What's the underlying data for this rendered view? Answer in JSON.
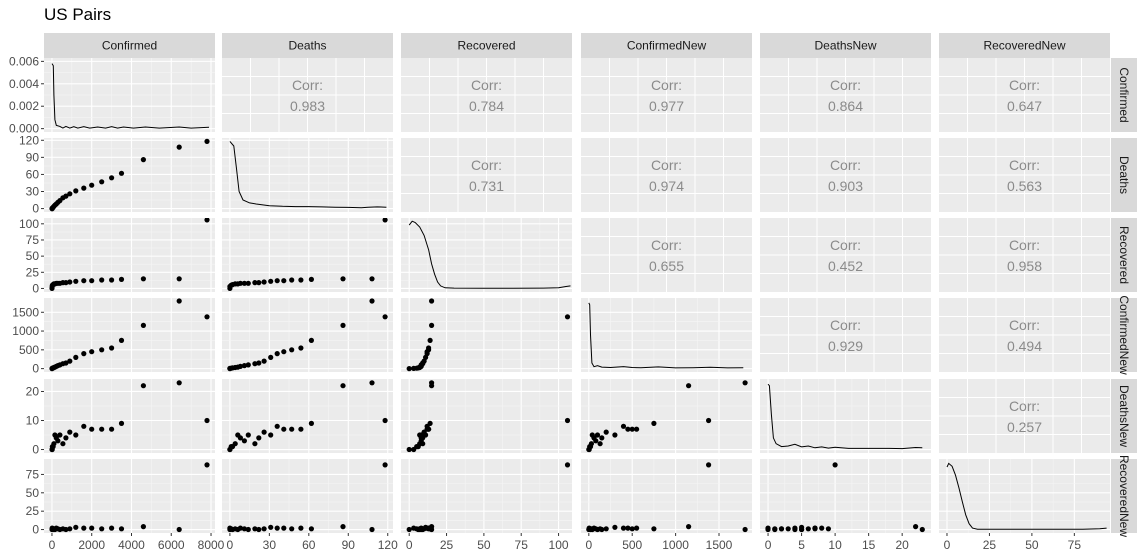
{
  "title": "US Pairs",
  "chart_data": {
    "type": "scatter",
    "subtype": "pairs-matrix",
    "title": "US Pairs",
    "variables": [
      "Confirmed",
      "Deaths",
      "Recovered",
      "ConfirmedNew",
      "DeathsNew",
      "RecoveredNew"
    ],
    "axes": {
      "x": [
        {
          "ticks": [
            0,
            2000,
            4000,
            6000,
            8000
          ],
          "tick_labels": [
            "0",
            "2000",
            "4000",
            "6000",
            "8000"
          ],
          "range": [
            -400,
            8200
          ]
        },
        {
          "ticks": [
            0,
            30,
            60,
            90,
            120
          ],
          "tick_labels": [
            "0",
            "30",
            "60",
            "90",
            "120"
          ],
          "range": [
            -6,
            124
          ]
        },
        {
          "ticks": [
            0,
            25,
            50,
            75,
            100
          ],
          "tick_labels": [
            "0",
            "25",
            "50",
            "75",
            "100"
          ],
          "range": [
            -5.5,
            109
          ]
        },
        {
          "ticks": [
            0,
            500,
            1000,
            1500
          ],
          "tick_labels": [
            "0",
            "500",
            "1000",
            "1500"
          ],
          "range": [
            -90,
            1880
          ]
        },
        {
          "ticks": [
            0,
            5,
            10,
            15,
            20
          ],
          "tick_labels": [
            "0",
            "5",
            "10",
            "15",
            "20"
          ],
          "range": [
            -1.2,
            24.3
          ]
        },
        {
          "ticks": [
            0,
            25,
            50,
            75
          ],
          "tick_labels": [
            "0",
            "25",
            "50",
            "75"
          ],
          "range": [
            -4.7,
            96
          ]
        }
      ],
      "y": [
        {
          "ticks": [
            0,
            0.002,
            0.004,
            0.006
          ],
          "tick_labels": [
            "0.000",
            "0.002",
            "0.004",
            "0.006"
          ],
          "range": [
            -0.0003,
            0.0063
          ]
        },
        {
          "ticks": [
            0,
            30,
            60,
            90,
            120
          ],
          "tick_labels": [
            "0",
            "30",
            "60",
            "90",
            "120"
          ],
          "range": [
            -6,
            124
          ]
        },
        {
          "ticks": [
            0,
            25,
            50,
            75,
            100
          ],
          "tick_labels": [
            "0",
            "25",
            "50",
            "75",
            "100"
          ],
          "range": [
            -5.5,
            109
          ]
        },
        {
          "ticks": [
            0,
            500,
            1000,
            1500
          ],
          "tick_labels": [
            "0",
            "500",
            "1000",
            "1500"
          ],
          "range": [
            -90,
            1880
          ]
        },
        {
          "ticks": [
            0,
            10,
            20
          ],
          "tick_labels": [
            "0",
            "10",
            "20"
          ],
          "range": [
            -1.2,
            24.3
          ]
        },
        {
          "ticks": [
            0,
            25,
            50,
            75
          ],
          "tick_labels": [
            "0",
            "25",
            "50",
            "75"
          ],
          "range": [
            -4.7,
            96
          ]
        }
      ]
    },
    "correlation_label": "Corr:",
    "correlations": [
      {
        "row": 0,
        "col": 1,
        "value": "0.983"
      },
      {
        "row": 0,
        "col": 2,
        "value": "0.784"
      },
      {
        "row": 0,
        "col": 3,
        "value": "0.977"
      },
      {
        "row": 0,
        "col": 4,
        "value": "0.864"
      },
      {
        "row": 0,
        "col": 5,
        "value": "0.647"
      },
      {
        "row": 1,
        "col": 2,
        "value": "0.731"
      },
      {
        "row": 1,
        "col": 3,
        "value": "0.974"
      },
      {
        "row": 1,
        "col": 4,
        "value": "0.903"
      },
      {
        "row": 1,
        "col": 5,
        "value": "0.563"
      },
      {
        "row": 2,
        "col": 3,
        "value": "0.655"
      },
      {
        "row": 2,
        "col": 4,
        "value": "0.452"
      },
      {
        "row": 2,
        "col": 5,
        "value": "0.958"
      },
      {
        "row": 3,
        "col": 4,
        "value": "0.929"
      },
      {
        "row": 3,
        "col": 5,
        "value": "0.494"
      },
      {
        "row": 4,
        "col": 5,
        "value": "0.257"
      }
    ],
    "densities": [
      {
        "var": "Confirmed",
        "points": [
          [
            0,
            0.0058
          ],
          [
            70,
            0.0056
          ],
          [
            100,
            0.003
          ],
          [
            150,
            0.0008
          ],
          [
            220,
            0.0003
          ],
          [
            400,
            0.0002
          ],
          [
            550,
            5e-05
          ],
          [
            700,
            0.0002
          ],
          [
            900,
            5e-05
          ],
          [
            1100,
            0.00018
          ],
          [
            1300,
            5e-05
          ],
          [
            1600,
            0.00018
          ],
          [
            1900,
            5e-05
          ],
          [
            2300,
            0.00015
          ],
          [
            2700,
            5e-05
          ],
          [
            3000,
            0.00018
          ],
          [
            3300,
            5e-05
          ],
          [
            3600,
            0.00015
          ],
          [
            4100,
            5e-05
          ],
          [
            4700,
            0.00015
          ],
          [
            5400,
            5e-05
          ],
          [
            6400,
            0.00015
          ],
          [
            7000,
            5e-05
          ],
          [
            7900,
            0.00012
          ]
        ]
      },
      {
        "var": "Deaths",
        "points": [
          [
            0,
            118
          ],
          [
            3,
            110
          ],
          [
            5,
            70
          ],
          [
            7,
            30
          ],
          [
            10,
            15
          ],
          [
            15,
            10
          ],
          [
            20,
            8
          ],
          [
            30,
            5
          ],
          [
            40,
            4
          ],
          [
            50,
            3.5
          ],
          [
            60,
            3.5
          ],
          [
            70,
            3
          ],
          [
            80,
            2.5
          ],
          [
            90,
            2
          ],
          [
            100,
            1.5
          ],
          [
            105,
            2.5
          ],
          [
            112,
            3
          ],
          [
            119,
            2.5
          ]
        ]
      },
      {
        "var": "Recovered",
        "points": [
          [
            0,
            98
          ],
          [
            2,
            104
          ],
          [
            4,
            102
          ],
          [
            7,
            95
          ],
          [
            10,
            82
          ],
          [
            13,
            60
          ],
          [
            15,
            38
          ],
          [
            17,
            22
          ],
          [
            19,
            10
          ],
          [
            21,
            4
          ],
          [
            24,
            1
          ],
          [
            30,
            0.5
          ],
          [
            50,
            0.3
          ],
          [
            70,
            0.3
          ],
          [
            90,
            0.5
          ],
          [
            100,
            1
          ],
          [
            105,
            3
          ],
          [
            108,
            4
          ]
        ]
      },
      {
        "var": "ConfirmedNew",
        "points": [
          [
            0,
            1750
          ],
          [
            10,
            1700
          ],
          [
            20,
            900
          ],
          [
            35,
            150
          ],
          [
            60,
            50
          ],
          [
            100,
            80
          ],
          [
            150,
            40
          ],
          [
            250,
            30
          ],
          [
            400,
            55
          ],
          [
            500,
            30
          ],
          [
            600,
            25
          ],
          [
            800,
            45
          ],
          [
            1000,
            20
          ],
          [
            1200,
            25
          ],
          [
            1400,
            35
          ],
          [
            1600,
            20
          ],
          [
            1780,
            25
          ]
        ]
      },
      {
        "var": "DeathsNew",
        "points": [
          [
            0,
            22.5
          ],
          [
            0.2,
            22
          ],
          [
            0.5,
            12
          ],
          [
            0.8,
            4
          ],
          [
            1.2,
            2
          ],
          [
            2,
            1
          ],
          [
            3,
            1.2
          ],
          [
            4,
            1.8
          ],
          [
            5,
            0.9
          ],
          [
            6,
            1.2
          ],
          [
            7,
            0.6
          ],
          [
            8,
            0.9
          ],
          [
            9,
            0.5
          ],
          [
            10,
            0.8
          ],
          [
            12,
            0.4
          ],
          [
            15,
            0.4
          ],
          [
            18,
            0.4
          ],
          [
            20,
            0.3
          ],
          [
            22,
            0.7
          ],
          [
            23,
            0.6
          ]
        ]
      },
      {
        "var": "RecoveredNew",
        "points": [
          [
            0,
            85
          ],
          [
            1,
            90
          ],
          [
            3,
            86
          ],
          [
            5,
            74
          ],
          [
            7,
            57
          ],
          [
            9,
            38
          ],
          [
            11,
            20
          ],
          [
            13,
            8
          ],
          [
            15,
            2
          ],
          [
            18,
            0.5
          ],
          [
            25,
            0.3
          ],
          [
            40,
            0.3
          ],
          [
            60,
            0.3
          ],
          [
            80,
            0.3
          ],
          [
            90,
            1
          ],
          [
            94,
            2
          ]
        ]
      }
    ],
    "observations": [
      {
        "Confirmed": 0,
        "Deaths": 0,
        "Recovered": 0,
        "ConfirmedNew": 0,
        "DeathsNew": 0,
        "RecoveredNew": 0
      },
      {
        "Confirmed": 10,
        "Deaths": 0,
        "Recovered": 3,
        "ConfirmedNew": 5,
        "DeathsNew": 0,
        "RecoveredNew": 2
      },
      {
        "Confirmed": 20,
        "Deaths": 1,
        "Recovered": 5,
        "ConfirmedNew": 10,
        "DeathsNew": 1,
        "RecoveredNew": 1
      },
      {
        "Confirmed": 60,
        "Deaths": 2,
        "Recovered": 6,
        "ConfirmedNew": 20,
        "DeathsNew": 1,
        "RecoveredNew": 0
      },
      {
        "Confirmed": 100,
        "Deaths": 4,
        "Recovered": 7,
        "ConfirmedNew": 30,
        "DeathsNew": 2,
        "RecoveredNew": 1
      },
      {
        "Confirmed": 150,
        "Deaths": 6,
        "Recovered": 7,
        "ConfirmedNew": 40,
        "DeathsNew": 5,
        "RecoveredNew": 0
      },
      {
        "Confirmed": 220,
        "Deaths": 8,
        "Recovered": 8,
        "ConfirmedNew": 60,
        "DeathsNew": 4,
        "RecoveredNew": 2
      },
      {
        "Confirmed": 300,
        "Deaths": 11,
        "Recovered": 8,
        "ConfirmedNew": 80,
        "DeathsNew": 3,
        "RecoveredNew": 1
      },
      {
        "Confirmed": 400,
        "Deaths": 14,
        "Recovered": 8,
        "ConfirmedNew": 100,
        "DeathsNew": 5,
        "RecoveredNew": 0
      },
      {
        "Confirmed": 550,
        "Deaths": 19,
        "Recovered": 9,
        "ConfirmedNew": 130,
        "DeathsNew": 2,
        "RecoveredNew": 1
      },
      {
        "Confirmed": 700,
        "Deaths": 22,
        "Recovered": 9,
        "ConfirmedNew": 150,
        "DeathsNew": 4,
        "RecoveredNew": 0
      },
      {
        "Confirmed": 900,
        "Deaths": 26,
        "Recovered": 10,
        "ConfirmedNew": 200,
        "DeathsNew": 6,
        "RecoveredNew": 1
      },
      {
        "Confirmed": 1200,
        "Deaths": 31,
        "Recovered": 11,
        "ConfirmedNew": 300,
        "DeathsNew": 5,
        "RecoveredNew": 3
      },
      {
        "Confirmed": 1600,
        "Deaths": 36,
        "Recovered": 12,
        "ConfirmedNew": 400,
        "DeathsNew": 8,
        "RecoveredNew": 2
      },
      {
        "Confirmed": 2000,
        "Deaths": 41,
        "Recovered": 12,
        "ConfirmedNew": 450,
        "DeathsNew": 7,
        "RecoveredNew": 2
      },
      {
        "Confirmed": 2500,
        "Deaths": 47,
        "Recovered": 13,
        "ConfirmedNew": 500,
        "DeathsNew": 7,
        "RecoveredNew": 1
      },
      {
        "Confirmed": 3000,
        "Deaths": 54,
        "Recovered": 13,
        "ConfirmedNew": 550,
        "DeathsNew": 7,
        "RecoveredNew": 2
      },
      {
        "Confirmed": 3500,
        "Deaths": 62,
        "Recovered": 14,
        "ConfirmedNew": 750,
        "DeathsNew": 9,
        "RecoveredNew": 1
      },
      {
        "Confirmed": 4600,
        "Deaths": 86,
        "Recovered": 15,
        "ConfirmedNew": 1150,
        "DeathsNew": 22,
        "RecoveredNew": 4
      },
      {
        "Confirmed": 6400,
        "Deaths": 108,
        "Recovered": 15,
        "ConfirmedNew": 1800,
        "DeathsNew": 23,
        "RecoveredNew": 0
      },
      {
        "Confirmed": 7800,
        "Deaths": 118,
        "Recovered": 106,
        "ConfirmedNew": 1380,
        "DeathsNew": 10,
        "RecoveredNew": 88
      }
    ],
    "grid": true,
    "legend": "none"
  }
}
